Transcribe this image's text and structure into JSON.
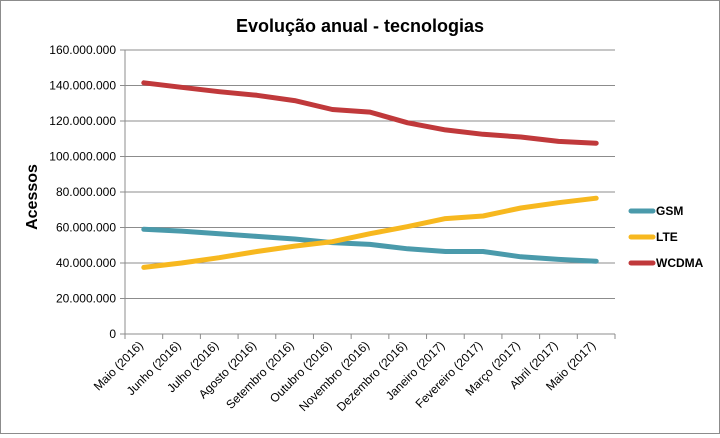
{
  "chart_data": {
    "type": "line",
    "title": "Evolução anual - tecnologias",
    "xlabel": "",
    "ylabel": "Acessos",
    "ylim": [
      0,
      160000000
    ],
    "yticks": [
      0,
      20000000,
      40000000,
      60000000,
      80000000,
      100000000,
      120000000,
      140000000,
      160000000
    ],
    "ytick_labels": [
      "0",
      "20.000.000",
      "40.000.000",
      "60.000.000",
      "80.000.000",
      "100.000.000",
      "120.000.000",
      "140.000.000",
      "160.000.000"
    ],
    "grid": true,
    "legend_position": "right",
    "categories": [
      "Maio (2016)",
      "Junho (2016)",
      "Julho (2016)",
      "Agosto (2016)",
      "Setembro (2016)",
      "Outubro (2016)",
      "Novembro (2016)",
      "Dezembro (2016)",
      "Janeiro (2017)",
      "Fevereiro (2017)",
      "Março (2017)",
      "Abril (2017)",
      "Maio (2017)"
    ],
    "series": [
      {
        "name": "GSM",
        "color": "#4a9aab",
        "values": [
          59000000,
          58000000,
          56500000,
          55000000,
          53500000,
          51500000,
          50500000,
          48000000,
          46500000,
          46500000,
          43500000,
          42000000,
          41000000
        ]
      },
      {
        "name": "LTE",
        "color": "#f7b81f",
        "values": [
          37500000,
          40000000,
          43000000,
          46500000,
          49500000,
          52000000,
          56500000,
          60500000,
          65000000,
          66500000,
          71000000,
          74000000,
          76500000
        ]
      },
      {
        "name": "WCDMA",
        "color": "#c0393b",
        "values": [
          141500000,
          139000000,
          136500000,
          134500000,
          131500000,
          126500000,
          125000000,
          119000000,
          115000000,
          112500000,
          111000000,
          108500000,
          107500000
        ]
      }
    ]
  }
}
